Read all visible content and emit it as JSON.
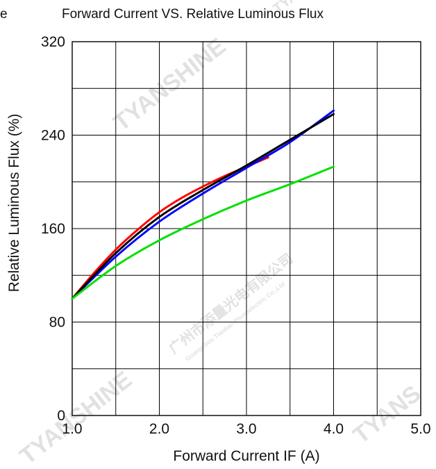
{
  "chart_data": {
    "type": "line",
    "title": "Forward Current VS.  Relative Luminous Flux",
    "title_prefix": "e",
    "xlabel": "Forward  Current  IF  (A)",
    "ylabel": "Relative  Luminous  Flux  (%)",
    "xlim": [
      1.0,
      5.0
    ],
    "ylim": [
      0,
      320
    ],
    "x_ticks": [
      "1.0",
      "2.0",
      "3.0",
      "4.0",
      "5.0"
    ],
    "y_ticks": [
      "0",
      "80",
      "160",
      "240",
      "320"
    ],
    "grid": true,
    "series": [
      {
        "color": "#ff0000",
        "x": [
          1.0,
          1.25,
          1.5,
          1.75,
          2.0,
          2.25,
          2.5,
          2.75,
          3.0,
          3.25
        ],
        "y": [
          100,
          122,
          142,
          159,
          174,
          186,
          196,
          205,
          213,
          221
        ]
      },
      {
        "color": "#0000ff",
        "x": [
          1.0,
          1.5,
          2.0,
          2.5,
          3.0,
          3.5,
          4.0
        ],
        "y": [
          100,
          136,
          166,
          190,
          212,
          234,
          261
        ]
      },
      {
        "color": "#000000",
        "x": [
          1.0,
          1.5,
          2.0,
          2.5,
          3.0,
          3.5,
          4.0
        ],
        "y": [
          100,
          139,
          170,
          193,
          214,
          236,
          258
        ]
      },
      {
        "color": "#00e000",
        "x": [
          1.0,
          1.5,
          2.0,
          2.5,
          3.0,
          3.5,
          4.0
        ],
        "y": [
          100,
          128,
          150,
          168,
          184,
          198,
          213
        ]
      }
    ]
  },
  "watermarks": [
    "TYANSHINE",
    "TYANSHINE",
    "TYANSHINE",
    "广州市添量光电有限公司",
    "Guangzhou Tianlian Photoelectric Co.,Ltd",
    "TYANS"
  ]
}
